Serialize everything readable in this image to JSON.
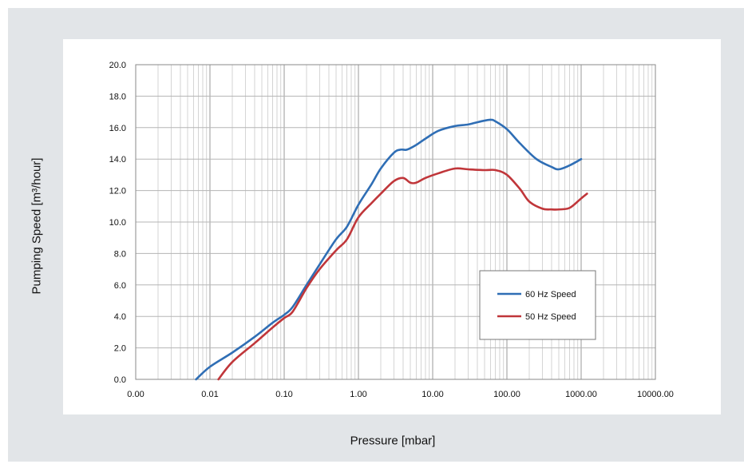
{
  "chart_data": {
    "type": "line",
    "title": "",
    "xlabel": "Pressure [mbar]",
    "ylabel": "Pumping Speed [m³/hour]",
    "x_scale": "log",
    "xlim": [
      0.001,
      10000
    ],
    "ylim": [
      0,
      20
    ],
    "grid": true,
    "legend_position": "right-middle",
    "x_tick_labels": [
      "0.00",
      "0.01",
      "0.10",
      "1.00",
      "10.00",
      "100.00",
      "1000.00",
      "10000.00"
    ],
    "y_tick_labels": [
      "0.0",
      "2.0",
      "4.0",
      "6.0",
      "8.0",
      "10.0",
      "12.0",
      "14.0",
      "16.0",
      "18.0",
      "20.0"
    ],
    "series": [
      {
        "name": "60 Hz Speed",
        "color": "#2f6eb5",
        "x": [
          0.0065,
          0.01,
          0.02,
          0.04,
          0.07,
          0.1,
          0.13,
          0.2,
          0.3,
          0.5,
          0.7,
          1.0,
          1.5,
          2.0,
          3.0,
          3.7,
          4.5,
          6.0,
          8.0,
          12.0,
          20.0,
          30.0,
          45.0,
          60.0,
          70.0,
          100.0,
          150.0,
          250.0,
          400.0,
          500.0,
          700.0,
          1000.0
        ],
        "y": [
          0.0,
          0.8,
          1.7,
          2.7,
          3.6,
          4.1,
          4.6,
          6.0,
          7.3,
          8.9,
          9.7,
          11.1,
          12.4,
          13.4,
          14.4,
          14.6,
          14.6,
          14.9,
          15.3,
          15.8,
          16.1,
          16.2,
          16.4,
          16.5,
          16.4,
          15.9,
          15.0,
          14.0,
          13.5,
          13.35,
          13.6,
          14.0
        ]
      },
      {
        "name": "50 Hz Speed",
        "color": "#c0363a",
        "x": [
          0.013,
          0.02,
          0.04,
          0.07,
          0.1,
          0.13,
          0.2,
          0.3,
          0.5,
          0.7,
          1.0,
          1.5,
          2.0,
          3.0,
          4.0,
          5.0,
          6.0,
          8.0,
          12.0,
          20.0,
          30.0,
          50.0,
          70.0,
          100.0,
          150.0,
          200.0,
          300.0,
          400.0,
          500.0,
          700.0,
          1000.0,
          1200.0
        ],
        "y": [
          0.0,
          1.1,
          2.3,
          3.3,
          3.9,
          4.3,
          5.8,
          7.0,
          8.2,
          8.9,
          10.3,
          11.2,
          11.8,
          12.6,
          12.8,
          12.5,
          12.5,
          12.8,
          13.1,
          13.4,
          13.35,
          13.3,
          13.3,
          13.0,
          12.1,
          11.3,
          10.85,
          10.8,
          10.8,
          10.9,
          11.5,
          11.8
        ]
      }
    ]
  }
}
